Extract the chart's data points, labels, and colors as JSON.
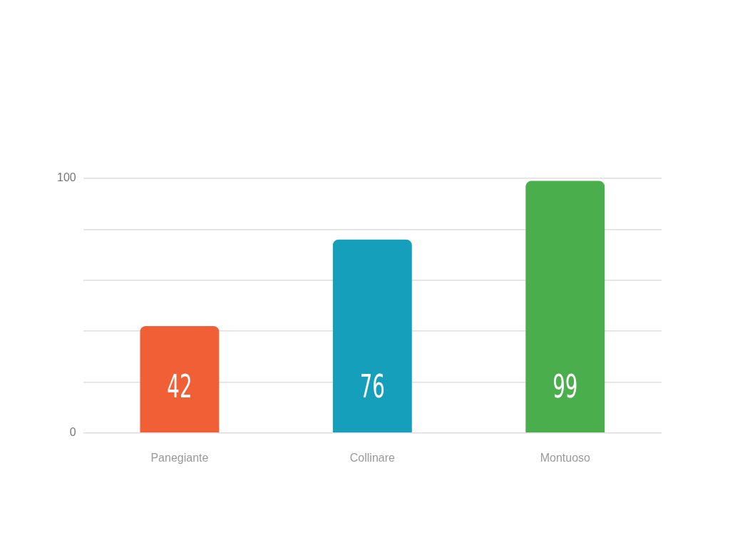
{
  "chart_data": {
    "type": "bar",
    "categories": [
      "Panegiante",
      "Collinare",
      "Montuoso"
    ],
    "values": [
      42,
      76,
      99
    ],
    "colors": [
      "#f05f35",
      "#159fbb",
      "#4aae4d"
    ],
    "ylim": [
      0,
      100
    ],
    "yticks": [
      0,
      {
        "value": 20,
        "label": null
      },
      {
        "value": 40,
        "label": null
      },
      {
        "value": 60,
        "label": null
      },
      {
        "value": 80,
        "label": null
      },
      100
    ],
    "grid": "y",
    "legend": false,
    "data_labels": true
  }
}
